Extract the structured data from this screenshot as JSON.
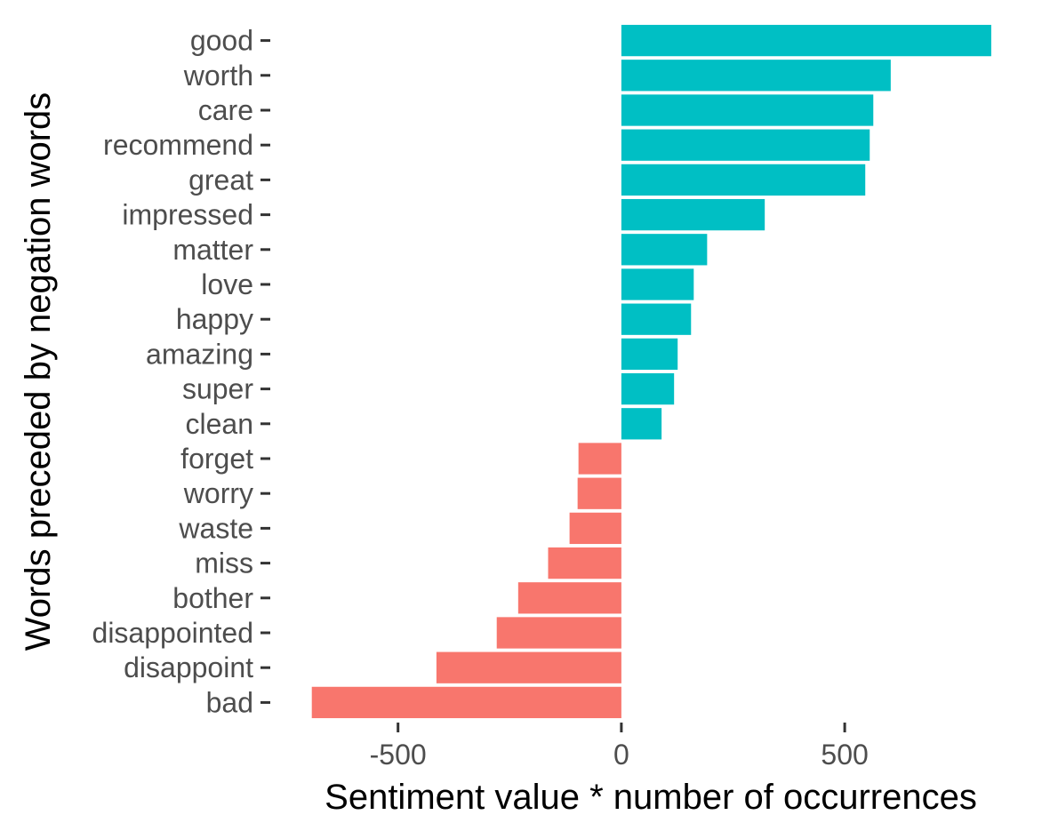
{
  "chart_data": {
    "type": "bar",
    "orientation": "horizontal",
    "title": "",
    "xlabel": "Sentiment value * number of occurrences",
    "ylabel": "Words preceded by negation words",
    "xlim": [
      -780,
      870
    ],
    "x_ticks": [
      -500,
      0,
      500
    ],
    "x_tick_labels": [
      "-500",
      "0",
      "500"
    ],
    "grid": false,
    "legend": "none",
    "colors": {
      "positive": "#00BFC4",
      "negative": "#F8766D"
    },
    "categories": [
      "good",
      "worth",
      "care",
      "recommend",
      "great",
      "impressed",
      "matter",
      "love",
      "happy",
      "amazing",
      "super",
      "clean",
      "forget",
      "worry",
      "waste",
      "miss",
      "bother",
      "disappointed",
      "disappoint",
      "bad"
    ],
    "values": [
      828,
      603,
      564,
      556,
      546,
      321,
      192,
      162,
      156,
      126,
      118,
      90,
      -96,
      -98,
      -116,
      -164,
      -231,
      -279,
      -414,
      -693
    ]
  }
}
